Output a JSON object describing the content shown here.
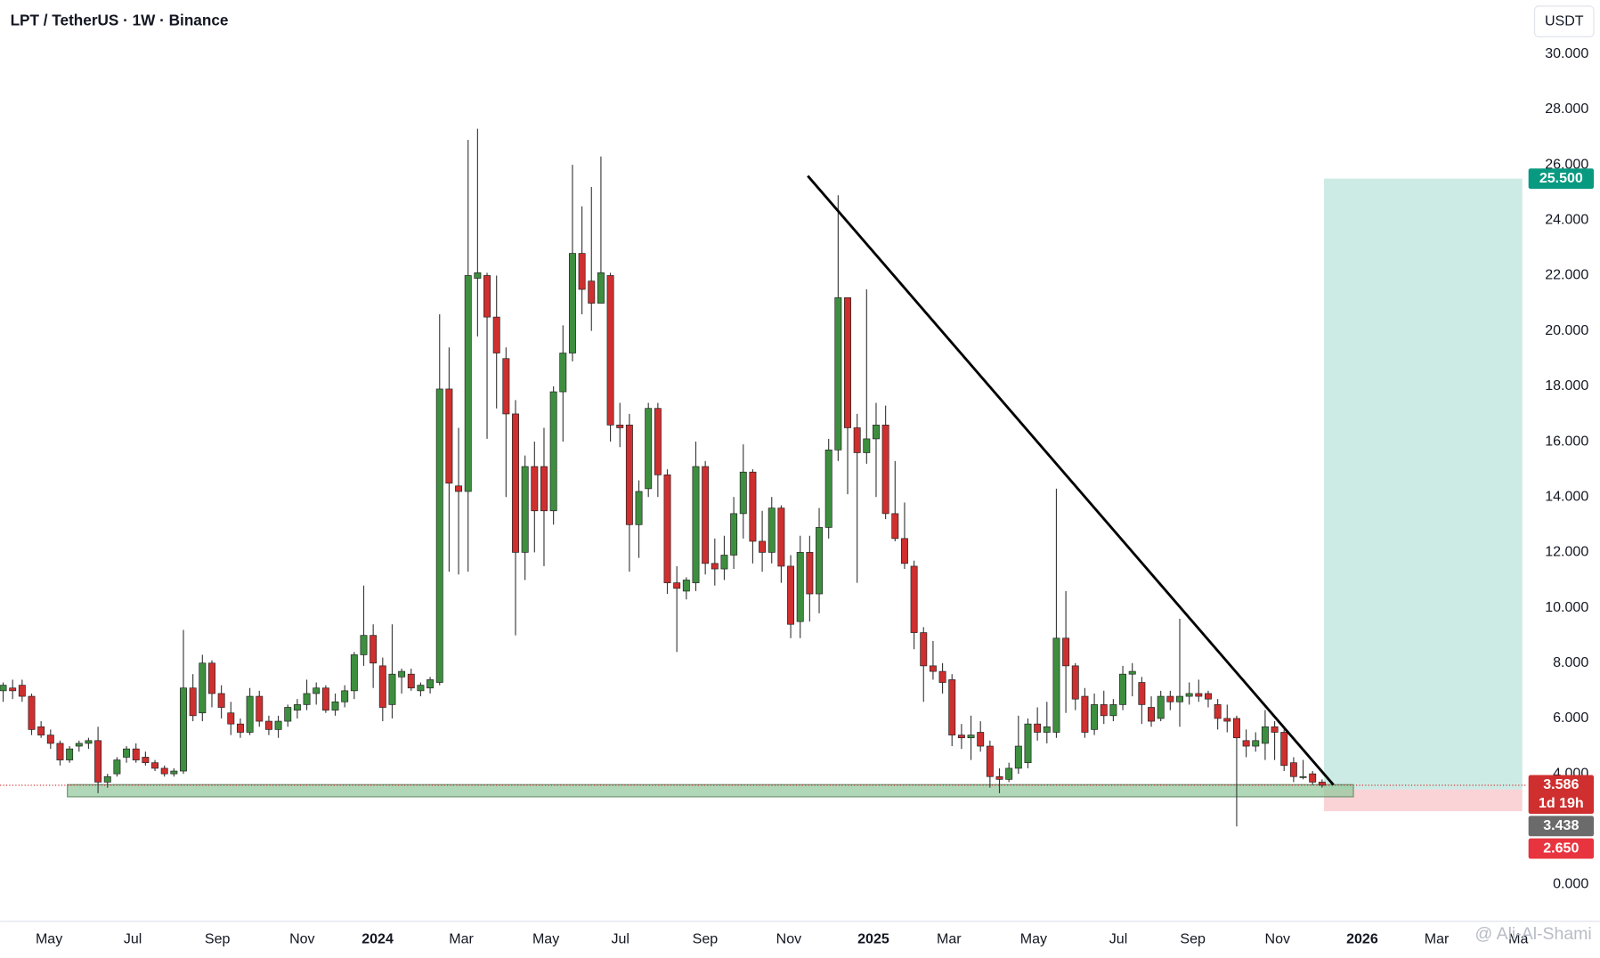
{
  "chart_data": {
    "type": "candlestick",
    "title": "LPT / TetherUS · 1W · Binance",
    "currency": "USDT",
    "watermark": "@ Ali-Al-Shami",
    "up_color": "#3d8f3f",
    "down_color": "#cf2f2f",
    "ylim": [
      0,
      30
    ],
    "yticks": [
      {
        "value": 0,
        "label": "0.000"
      },
      {
        "value": 4,
        "label": "4.000"
      },
      {
        "value": 6,
        "label": "6.000"
      },
      {
        "value": 8,
        "label": "8.000"
      },
      {
        "value": 10,
        "label": "10.000"
      },
      {
        "value": 12,
        "label": "12.000"
      },
      {
        "value": 14,
        "label": "14.000"
      },
      {
        "value": 16,
        "label": "16.000"
      },
      {
        "value": 18,
        "label": "18.000"
      },
      {
        "value": 20,
        "label": "20.000"
      },
      {
        "value": 22,
        "label": "22.000"
      },
      {
        "value": 24,
        "label": "24.000"
      },
      {
        "value": 26,
        "label": "26.000"
      },
      {
        "value": 28,
        "label": "28.000"
      },
      {
        "value": 30,
        "label": "30.000"
      }
    ],
    "xlim": [
      -0.32,
      160.43
    ],
    "xticks": [
      {
        "value": 4.84,
        "label": "May"
      },
      {
        "value": 13.66,
        "label": "Jul"
      },
      {
        "value": 22.58,
        "label": "Sep"
      },
      {
        "value": 31.51,
        "label": "Nov"
      },
      {
        "value": 39.46,
        "label": "2024",
        "bold": true
      },
      {
        "value": 48.28,
        "label": "Mar"
      },
      {
        "value": 57.2,
        "label": "May"
      },
      {
        "value": 65.05,
        "label": "Jul"
      },
      {
        "value": 73.98,
        "label": "Sep"
      },
      {
        "value": 82.8,
        "label": "Nov"
      },
      {
        "value": 91.72,
        "label": "2025",
        "bold": true
      },
      {
        "value": 99.68,
        "label": "Mar"
      },
      {
        "value": 108.6,
        "label": "May"
      },
      {
        "value": 117.53,
        "label": "Jul"
      },
      {
        "value": 125.38,
        "label": "Sep"
      },
      {
        "value": 134.3,
        "label": "Nov"
      },
      {
        "value": 143.23,
        "label": "2026",
        "bold": true
      },
      {
        "value": 151.08,
        "label": "Mar"
      },
      {
        "value": 159.68,
        "label": "Ma"
      }
    ],
    "ohlc": [
      [
        7.0,
        7.3,
        6.6,
        7.2
      ],
      [
        7.1,
        7.4,
        6.7,
        7.0
      ],
      [
        7.2,
        7.4,
        6.6,
        6.8
      ],
      [
        6.8,
        6.9,
        5.4,
        5.6
      ],
      [
        5.7,
        5.9,
        5.3,
        5.4
      ],
      [
        5.4,
        5.6,
        4.9,
        5.1
      ],
      [
        5.1,
        5.2,
        4.3,
        4.5
      ],
      [
        4.5,
        5.0,
        4.4,
        4.9
      ],
      [
        5.0,
        5.2,
        4.8,
        5.1
      ],
      [
        5.1,
        5.3,
        4.9,
        5.2
      ],
      [
        5.2,
        5.7,
        3.3,
        3.7
      ],
      [
        3.7,
        4.0,
        3.5,
        3.9
      ],
      [
        4.0,
        4.6,
        3.9,
        4.5
      ],
      [
        4.6,
        5.0,
        4.4,
        4.9
      ],
      [
        4.9,
        5.1,
        4.4,
        4.5
      ],
      [
        4.6,
        4.8,
        4.3,
        4.4
      ],
      [
        4.4,
        4.5,
        4.1,
        4.2
      ],
      [
        4.2,
        4.3,
        3.9,
        4.0
      ],
      [
        4.0,
        4.2,
        3.9,
        4.1
      ],
      [
        4.1,
        9.2,
        4.0,
        7.1
      ],
      [
        7.1,
        7.6,
        5.9,
        6.1
      ],
      [
        6.2,
        8.3,
        5.9,
        8.0
      ],
      [
        8.0,
        8.1,
        6.4,
        6.9
      ],
      [
        6.9,
        7.2,
        6.0,
        6.4
      ],
      [
        6.2,
        6.6,
        5.4,
        5.8
      ],
      [
        5.8,
        6.0,
        5.3,
        5.5
      ],
      [
        5.5,
        7.1,
        5.4,
        6.8
      ],
      [
        6.8,
        7.0,
        5.7,
        5.9
      ],
      [
        5.9,
        6.1,
        5.4,
        5.6
      ],
      [
        5.6,
        6.1,
        5.3,
        5.9
      ],
      [
        5.9,
        6.5,
        5.7,
        6.4
      ],
      [
        6.3,
        6.7,
        6.0,
        6.5
      ],
      [
        6.5,
        7.4,
        6.3,
        6.9
      ],
      [
        6.9,
        7.3,
        6.5,
        7.1
      ],
      [
        7.1,
        7.2,
        6.2,
        6.3
      ],
      [
        6.3,
        6.9,
        6.1,
        6.6
      ],
      [
        6.6,
        7.2,
        6.4,
        7.0
      ],
      [
        7.0,
        8.4,
        6.7,
        8.3
      ],
      [
        8.3,
        10.8,
        7.9,
        9.0
      ],
      [
        9.0,
        9.4,
        7.1,
        8.0
      ],
      [
        7.9,
        8.2,
        5.9,
        6.4
      ],
      [
        6.5,
        9.4,
        6.0,
        7.6
      ],
      [
        7.5,
        7.8,
        6.9,
        7.7
      ],
      [
        7.6,
        7.8,
        7.0,
        7.1
      ],
      [
        7.0,
        7.3,
        6.8,
        7.2
      ],
      [
        7.1,
        7.5,
        6.9,
        7.4
      ],
      [
        7.3,
        20.6,
        7.2,
        17.9
      ],
      [
        17.9,
        19.4,
        11.3,
        14.5
      ],
      [
        14.4,
        16.5,
        11.2,
        14.2
      ],
      [
        14.2,
        26.9,
        11.3,
        22.0
      ],
      [
        21.9,
        27.3,
        19.8,
        22.1
      ],
      [
        22.0,
        22.1,
        16.1,
        20.5
      ],
      [
        20.5,
        22.0,
        17.2,
        19.2
      ],
      [
        19.0,
        19.4,
        14.0,
        17.0
      ],
      [
        17.0,
        17.5,
        9.0,
        12.0
      ],
      [
        12.0,
        15.5,
        11.0,
        15.1
      ],
      [
        15.1,
        16.0,
        12.0,
        13.5
      ],
      [
        15.1,
        16.5,
        11.5,
        13.5
      ],
      [
        13.5,
        18.0,
        13.0,
        17.8
      ],
      [
        17.8,
        20.2,
        16.0,
        19.2
      ],
      [
        19.2,
        26.0,
        18.9,
        22.8
      ],
      [
        22.8,
        24.5,
        20.6,
        21.5
      ],
      [
        21.8,
        25.2,
        20.0,
        21.0
      ],
      [
        21.0,
        26.3,
        21.0,
        22.1
      ],
      [
        22.0,
        22.1,
        16.0,
        16.6
      ],
      [
        16.6,
        17.4,
        15.8,
        16.5
      ],
      [
        16.6,
        17.0,
        11.3,
        13.0
      ],
      [
        13.0,
        14.6,
        11.8,
        14.2
      ],
      [
        14.3,
        17.4,
        14.0,
        17.2
      ],
      [
        17.2,
        17.4,
        14.0,
        14.8
      ],
      [
        14.8,
        15.0,
        10.5,
        10.9
      ],
      [
        10.9,
        11.5,
        8.4,
        10.7
      ],
      [
        10.6,
        11.1,
        10.3,
        11.0
      ],
      [
        10.9,
        16.0,
        10.6,
        15.1
      ],
      [
        15.1,
        15.3,
        11.2,
        11.6
      ],
      [
        11.6,
        12.5,
        10.8,
        11.4
      ],
      [
        11.4,
        12.6,
        11.0,
        11.9
      ],
      [
        11.9,
        14.0,
        11.4,
        13.4
      ],
      [
        13.4,
        15.9,
        12.5,
        14.9
      ],
      [
        14.9,
        15.0,
        11.6,
        12.4
      ],
      [
        12.4,
        13.5,
        11.3,
        12.0
      ],
      [
        12.0,
        14.0,
        11.6,
        13.6
      ],
      [
        13.6,
        13.7,
        10.9,
        11.5
      ],
      [
        11.5,
        11.9,
        8.9,
        9.4
      ],
      [
        9.5,
        12.6,
        8.9,
        12.0
      ],
      [
        12.0,
        12.6,
        9.5,
        10.5
      ],
      [
        10.5,
        13.6,
        9.8,
        12.9
      ],
      [
        12.9,
        16.1,
        12.5,
        15.7
      ],
      [
        15.7,
        24.9,
        15.3,
        21.2
      ],
      [
        21.2,
        21.2,
        14.1,
        16.5
      ],
      [
        16.5,
        17.0,
        10.9,
        15.6
      ],
      [
        15.6,
        21.5,
        15.2,
        16.1
      ],
      [
        16.1,
        17.4,
        14.0,
        16.6
      ],
      [
        16.6,
        17.3,
        13.2,
        13.4
      ],
      [
        13.4,
        15.3,
        12.4,
        12.5
      ],
      [
        12.5,
        13.8,
        11.4,
        11.6
      ],
      [
        11.5,
        11.7,
        8.5,
        9.1
      ],
      [
        9.1,
        9.3,
        6.6,
        7.9
      ],
      [
        7.9,
        8.8,
        7.4,
        7.7
      ],
      [
        7.7,
        8.0,
        6.9,
        7.3
      ],
      [
        7.4,
        7.6,
        5.0,
        5.4
      ],
      [
        5.4,
        5.8,
        4.9,
        5.3
      ],
      [
        5.3,
        6.1,
        4.5,
        5.4
      ],
      [
        5.5,
        5.9,
        4.8,
        5.0
      ],
      [
        5.0,
        5.2,
        3.5,
        3.9
      ],
      [
        3.9,
        4.2,
        3.3,
        3.8
      ],
      [
        3.8,
        4.4,
        3.7,
        4.2
      ],
      [
        4.2,
        6.1,
        4.0,
        5.0
      ],
      [
        4.4,
        6.0,
        4.2,
        5.8
      ],
      [
        5.8,
        6.4,
        5.2,
        5.5
      ],
      [
        5.5,
        6.6,
        5.1,
        5.7
      ],
      [
        5.5,
        14.3,
        5.3,
        8.9
      ],
      [
        8.9,
        10.6,
        6.2,
        7.9
      ],
      [
        7.9,
        8.0,
        6.3,
        6.7
      ],
      [
        6.8,
        7.1,
        5.3,
        5.5
      ],
      [
        5.6,
        6.9,
        5.4,
        6.5
      ],
      [
        6.5,
        7.0,
        5.8,
        6.1
      ],
      [
        6.1,
        6.7,
        5.9,
        6.5
      ],
      [
        6.5,
        7.9,
        6.3,
        7.6
      ],
      [
        7.6,
        8.0,
        6.8,
        7.7
      ],
      [
        7.3,
        7.5,
        5.8,
        6.5
      ],
      [
        6.4,
        6.8,
        5.7,
        5.9
      ],
      [
        6.0,
        7.0,
        5.9,
        6.8
      ],
      [
        6.8,
        7.0,
        6.3,
        6.6
      ],
      [
        6.6,
        9.6,
        5.7,
        6.8
      ],
      [
        6.8,
        7.3,
        6.5,
        6.9
      ],
      [
        6.9,
        7.4,
        6.6,
        6.8
      ],
      [
        6.9,
        7.0,
        6.4,
        6.7
      ],
      [
        6.5,
        6.7,
        5.6,
        6.0
      ],
      [
        6.0,
        6.5,
        5.5,
        5.9
      ],
      [
        6.0,
        6.1,
        2.1,
        5.3
      ],
      [
        5.2,
        5.6,
        4.6,
        5.0
      ],
      [
        5.0,
        5.5,
        4.8,
        5.2
      ],
      [
        5.1,
        6.3,
        4.5,
        5.7
      ],
      [
        5.7,
        5.9,
        4.5,
        5.5
      ],
      [
        5.5,
        5.6,
        4.1,
        4.3
      ],
      [
        4.4,
        4.6,
        3.7,
        3.9
      ],
      [
        3.9,
        4.5,
        3.8,
        3.9
      ],
      [
        4.0,
        4.1,
        3.6,
        3.7
      ],
      [
        3.7,
        3.8,
        3.5,
        3.586
      ]
    ],
    "trendline": {
      "x": [
        84.8,
        140.2
      ],
      "y": [
        25.6,
        3.6
      ],
      "color": "#000000"
    },
    "support_zone": {
      "x": [
        6.77,
        142.3
      ],
      "y": [
        3.17,
        3.61
      ],
      "color": "#8fc79a"
    },
    "position": {
      "x": [
        139.2,
        160.1
      ],
      "entry": 3.438,
      "target": 25.5,
      "stop": 2.65
    },
    "badges": [
      {
        "value": 25.5,
        "label": "25.500",
        "color": "#089981"
      },
      {
        "value": 3.586,
        "label": "3.586",
        "sub": "1d 19h",
        "color": "#cf2f2f"
      },
      {
        "value": 3.438,
        "label": "3.438",
        "color": "#6b6b6b"
      },
      {
        "value": 2.65,
        "label": "2.650",
        "color": "#e8343f"
      }
    ]
  }
}
